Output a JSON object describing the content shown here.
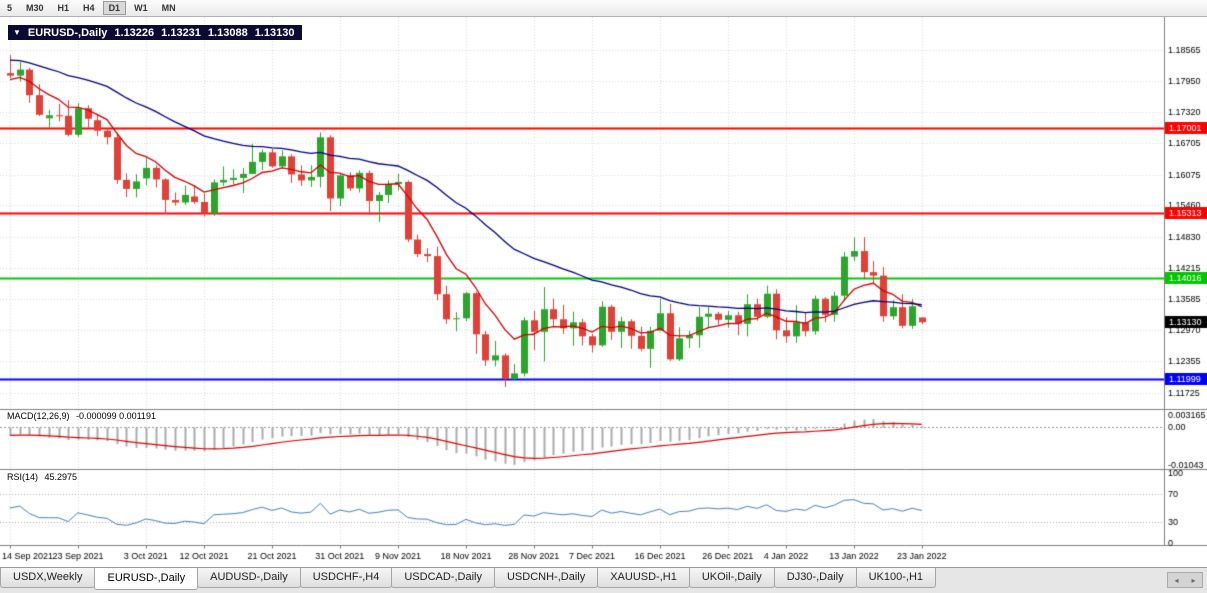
{
  "toolbar": {
    "timeframes": [
      "5",
      "M30",
      "H1",
      "H4",
      "D1",
      "W1",
      "MN"
    ],
    "active": "D1"
  },
  "chart_header": {
    "symbol": "EURUSD-,Daily",
    "open": "1.13226",
    "high": "1.13231",
    "low": "1.13088",
    "close": "1.13130"
  },
  "tabs": {
    "items": [
      {
        "label": "USDX,Weekly",
        "active": false
      },
      {
        "label": "EURUSD-,Daily",
        "active": true
      },
      {
        "label": "AUDUSD-,Daily",
        "active": false
      },
      {
        "label": "USDCHF-,H4",
        "active": false
      },
      {
        "label": "USDCAD-,Daily",
        "active": false
      },
      {
        "label": "USDCNH-,Daily",
        "active": false
      },
      {
        "label": "XAUUSD-,H1",
        "active": false
      },
      {
        "label": "UKOil-,Daily",
        "active": false
      },
      {
        "label": "DJ30-,Daily",
        "active": false
      },
      {
        "label": "UK100-,H1",
        "active": false
      }
    ]
  },
  "chart_data": {
    "type": "candlestick",
    "title": "EURUSD-,Daily",
    "ylim": [
      1.1148,
      1.1912
    ],
    "y_axis_labels": [
      "1.18565",
      "1.17950",
      "1.17320",
      "1.16705",
      "1.16075",
      "1.15460",
      "1.14830",
      "1.14215",
      "1.13585",
      "1.12970",
      "1.12355",
      "1.11725"
    ],
    "x_ticks": [
      {
        "label": "14 Sep 2021",
        "i": 0
      },
      {
        "label": "23 Sep 2021",
        "i": 7
      },
      {
        "label": "3 Oct 2021",
        "i": 14
      },
      {
        "label": "12 Oct 2021",
        "i": 20
      },
      {
        "label": "21 Oct 2021",
        "i": 27
      },
      {
        "label": "31 Oct 2021",
        "i": 34
      },
      {
        "label": "9 Nov 2021",
        "i": 40
      },
      {
        "label": "18 Nov 2021",
        "i": 47
      },
      {
        "label": "28 Nov 2021",
        "i": 54
      },
      {
        "label": "7 Dec 2021",
        "i": 60
      },
      {
        "label": "16 Dec 2021",
        "i": 67
      },
      {
        "label": "26 Dec 2021",
        "i": 74
      },
      {
        "label": "4 Jan 2022",
        "i": 80
      },
      {
        "label": "13 Jan 2022",
        "i": 87
      },
      {
        "label": "23 Jan 2022",
        "i": 94
      }
    ],
    "candles": [
      [
        1.181,
        1.1846,
        1.18,
        1.1805
      ],
      [
        1.1805,
        1.1832,
        1.1793,
        1.1817
      ],
      [
        1.1817,
        1.1821,
        1.1751,
        1.1766
      ],
      [
        1.1766,
        1.1788,
        1.1724,
        1.1727
      ],
      [
        1.172,
        1.1737,
        1.17,
        1.1726
      ],
      [
        1.1726,
        1.1749,
        1.1714,
        1.1725
      ],
      [
        1.1725,
        1.1756,
        1.1684,
        1.1687
      ],
      [
        1.1687,
        1.175,
        1.1683,
        1.174
      ],
      [
        1.174,
        1.1746,
        1.1701,
        1.1719
      ],
      [
        1.1716,
        1.1729,
        1.1685,
        1.1695
      ],
      [
        1.1695,
        1.17,
        1.1668,
        1.1682
      ],
      [
        1.1682,
        1.169,
        1.1589,
        1.1597
      ],
      [
        1.1597,
        1.161,
        1.1563,
        1.1579
      ],
      [
        1.1579,
        1.1608,
        1.1562,
        1.1594
      ],
      [
        1.16,
        1.164,
        1.1587,
        1.1621
      ],
      [
        1.1621,
        1.1626,
        1.1582,
        1.1598
      ],
      [
        1.1598,
        1.16,
        1.1529,
        1.1557
      ],
      [
        1.1557,
        1.1572,
        1.1546,
        1.1552
      ],
      [
        1.1552,
        1.1586,
        1.1547,
        1.1567
      ],
      [
        1.1564,
        1.1586,
        1.1549,
        1.1553
      ],
      [
        1.1553,
        1.157,
        1.1524,
        1.153
      ],
      [
        1.153,
        1.1598,
        1.1525,
        1.1592
      ],
      [
        1.1592,
        1.1624,
        1.1585,
        1.1597
      ],
      [
        1.1597,
        1.1618,
        1.1588,
        1.1601
      ],
      [
        1.1601,
        1.1621,
        1.1571,
        1.1609
      ],
      [
        1.1609,
        1.1669,
        1.1609,
        1.1633
      ],
      [
        1.1633,
        1.1658,
        1.1617,
        1.1652
      ],
      [
        1.1652,
        1.1659,
        1.1621,
        1.1624
      ],
      [
        1.1624,
        1.1656,
        1.162,
        1.1644
      ],
      [
        1.1644,
        1.1648,
        1.1591,
        1.1608
      ],
      [
        1.1608,
        1.1626,
        1.1585,
        1.1596
      ],
      [
        1.1596,
        1.1626,
        1.1583,
        1.1603
      ],
      [
        1.1603,
        1.1692,
        1.1582,
        1.1682
      ],
      [
        1.1682,
        1.1686,
        1.1535,
        1.156
      ],
      [
        1.156,
        1.1609,
        1.1545,
        1.1606
      ],
      [
        1.1606,
        1.1612,
        1.1575,
        1.158
      ],
      [
        1.158,
        1.1616,
        1.1572,
        1.1611
      ],
      [
        1.1611,
        1.1616,
        1.1527,
        1.1555
      ],
      [
        1.1555,
        1.1573,
        1.1513,
        1.1567
      ],
      [
        1.1567,
        1.1596,
        1.1551,
        1.1589
      ],
      [
        1.1589,
        1.1609,
        1.1576,
        1.1593
      ],
      [
        1.1593,
        1.1596,
        1.1473,
        1.1478
      ],
      [
        1.1478,
        1.1488,
        1.1443,
        1.1449
      ],
      [
        1.1449,
        1.1461,
        1.1433,
        1.1445
      ],
      [
        1.1445,
        1.1464,
        1.1357,
        1.1369
      ],
      [
        1.1369,
        1.1386,
        1.131,
        1.1319
      ],
      [
        1.1319,
        1.1333,
        1.1295,
        1.1321
      ],
      [
        1.1321,
        1.1374,
        1.1315,
        1.1371
      ],
      [
        1.1371,
        1.1374,
        1.125,
        1.1289
      ],
      [
        1.1289,
        1.1296,
        1.1226,
        1.1237
      ],
      [
        1.1237,
        1.1276,
        1.1225,
        1.1247
      ],
      [
        1.1247,
        1.1251,
        1.1184,
        1.12
      ],
      [
        1.12,
        1.123,
        1.1196,
        1.1211
      ],
      [
        1.1211,
        1.1323,
        1.1205,
        1.1317
      ],
      [
        1.1317,
        1.1336,
        1.1258,
        1.1294
      ],
      [
        1.1294,
        1.1383,
        1.1235,
        1.1339
      ],
      [
        1.1339,
        1.136,
        1.1305,
        1.1319
      ],
      [
        1.1319,
        1.1348,
        1.129,
        1.1301
      ],
      [
        1.1301,
        1.1334,
        1.1266,
        1.1313
      ],
      [
        1.1313,
        1.132,
        1.1267,
        1.1285
      ],
      [
        1.1285,
        1.129,
        1.1253,
        1.1267
      ],
      [
        1.1267,
        1.1355,
        1.1264,
        1.1344
      ],
      [
        1.1344,
        1.1348,
        1.1278,
        1.1294
      ],
      [
        1.1294,
        1.1324,
        1.1262,
        1.1315
      ],
      [
        1.1315,
        1.1319,
        1.126,
        1.1286
      ],
      [
        1.1286,
        1.1304,
        1.1255,
        1.126
      ],
      [
        1.126,
        1.1304,
        1.1222,
        1.1296
      ],
      [
        1.1296,
        1.136,
        1.1296,
        1.1331
      ],
      [
        1.1331,
        1.135,
        1.1236,
        1.1239
      ],
      [
        1.1239,
        1.1303,
        1.1236,
        1.1281
      ],
      [
        1.1281,
        1.1296,
        1.1262,
        1.1287
      ],
      [
        1.1287,
        1.1343,
        1.1262,
        1.1324
      ],
      [
        1.1324,
        1.1343,
        1.1303,
        1.133
      ],
      [
        1.133,
        1.1334,
        1.1308,
        1.1318
      ],
      [
        1.1318,
        1.1336,
        1.1302,
        1.1327
      ],
      [
        1.1327,
        1.1334,
        1.1287,
        1.131
      ],
      [
        1.131,
        1.1369,
        1.1285,
        1.1349
      ],
      [
        1.1349,
        1.136,
        1.1316,
        1.1324
      ],
      [
        1.1324,
        1.1386,
        1.1321,
        1.137
      ],
      [
        1.137,
        1.1379,
        1.1279,
        1.1297
      ],
      [
        1.1297,
        1.1323,
        1.1272,
        1.1285
      ],
      [
        1.1285,
        1.1347,
        1.1272,
        1.1313
      ],
      [
        1.1313,
        1.1332,
        1.1285,
        1.1295
      ],
      [
        1.1295,
        1.1366,
        1.1288,
        1.136
      ],
      [
        1.136,
        1.1363,
        1.1313,
        1.1328
      ],
      [
        1.1328,
        1.1374,
        1.1314,
        1.1366
      ],
      [
        1.1366,
        1.1453,
        1.1355,
        1.1444
      ],
      [
        1.1444,
        1.1482,
        1.1435,
        1.1455
      ],
      [
        1.1455,
        1.1483,
        1.1399,
        1.1413
      ],
      [
        1.1413,
        1.1435,
        1.1391,
        1.1406
      ],
      [
        1.1406,
        1.1423,
        1.1314,
        1.1325
      ],
      [
        1.1325,
        1.1357,
        1.1318,
        1.1343
      ],
      [
        1.1343,
        1.1369,
        1.1301,
        1.1306
      ],
      [
        1.1306,
        1.136,
        1.13,
        1.1345
      ],
      [
        1.13226,
        1.13231,
        1.13088,
        1.1313
      ]
    ],
    "moving_averages": [
      {
        "type": "ema",
        "period": 8,
        "seed": 1.1795,
        "color": "#D00000"
      },
      {
        "type": "ema",
        "period": 32,
        "seed": 1.1838,
        "color": "#000080"
      }
    ],
    "hlines": [
      {
        "price": 1.17001,
        "label": "1.17001",
        "color": "#FF0000",
        "width": 2
      },
      {
        "price": 1.15313,
        "label": "1.15313",
        "color": "#FF0000",
        "width": 2
      },
      {
        "price": 1.14016,
        "label": "1.14016",
        "color": "#00C800",
        "width": 2
      },
      {
        "price": 1.1313,
        "label": "1.13130",
        "color": "#000000",
        "width": 0
      },
      {
        "price": 1.11999,
        "label": "1.11999",
        "color": "#0000FF",
        "width": 2
      }
    ],
    "macd": {
      "label": "MACD(12,26,9)",
      "values": "-0.000099 0.001191",
      "fast": 12,
      "slow": 26,
      "signal": 9,
      "ylim": [
        -0.011,
        0.0038
      ],
      "scale": [
        {
          "v": 0.003165,
          "label": "0.003165"
        },
        {
          "v": 0,
          "label": "0.00"
        },
        {
          "v": -0.01043,
          "label": "-0.01043"
        }
      ]
    },
    "rsi": {
      "label": "RSI(14)",
      "value": "45.2975",
      "period": 14,
      "levels": [
        70,
        30
      ],
      "scale": [
        {
          "v": 100,
          "label": "100"
        },
        {
          "v": 70,
          "label": "70"
        },
        {
          "v": 30,
          "label": "30"
        },
        {
          "v": 0,
          "label": "0"
        }
      ]
    },
    "colors": {
      "bull": "#2CA52C",
      "bear": "#E04038",
      "grid": "#DADADA",
      "macd_hist": "#ABABAB",
      "macd_signal": "#E00000",
      "rsi_line": "#4C7FBE",
      "separator": "#808080",
      "axis_text": "#000000"
    }
  }
}
